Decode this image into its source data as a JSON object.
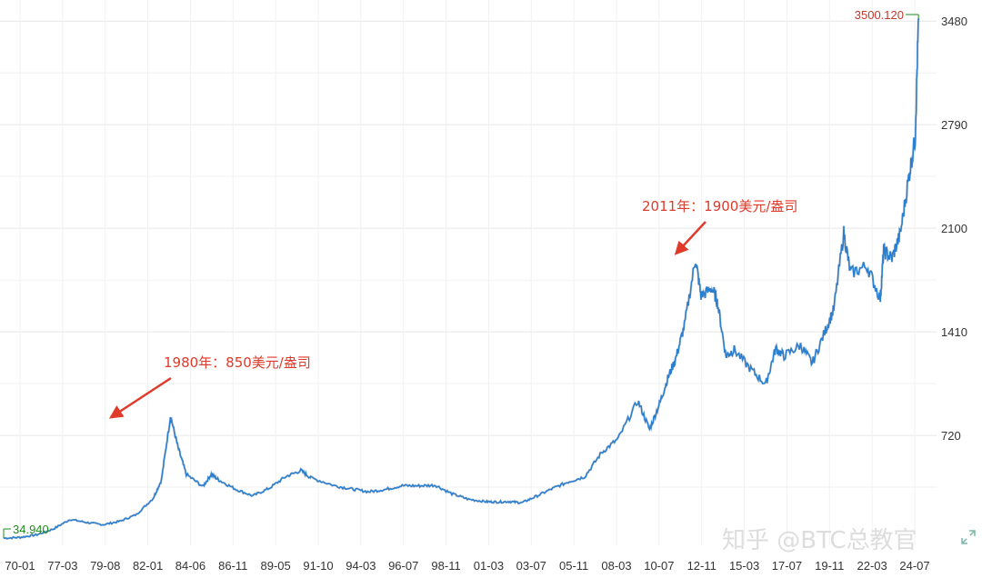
{
  "chart_data": {
    "type": "line",
    "x_ticks": [
      "70-01",
      "77-03",
      "79-08",
      "82-01",
      "84-06",
      "86-11",
      "89-05",
      "91-10",
      "94-03",
      "96-07",
      "98-11",
      "01-03",
      "03-07",
      "05-11",
      "08-03",
      "10-07",
      "12-11",
      "15-03",
      "17-07",
      "19-11",
      "22-03",
      "24-07"
    ],
    "y_ticks": [
      720,
      1410,
      2100,
      2790,
      3480
    ],
    "ylim": [
      0,
      3560
    ],
    "xlim": [
      1970.0,
      2025.2
    ],
    "grid": true,
    "max_label": "3500.120",
    "min_label": "34.940",
    "series": [
      {
        "color": "#2b7fd0",
        "x": [
          1970.0,
          1971.0,
          1972.0,
          1973.0,
          1974.0,
          1975.0,
          1976.0,
          1977.0,
          1978.0,
          1979.0,
          1979.5,
          1980.05,
          1980.5,
          1981.0,
          1982.0,
          1982.5,
          1983.0,
          1984.0,
          1985.0,
          1986.0,
          1987.0,
          1987.9,
          1988.5,
          1990.0,
          1991.0,
          1992.0,
          1993.0,
          1994.0,
          1995.0,
          1996.0,
          1997.0,
          1998.0,
          1999.0,
          1999.7,
          2000.5,
          2001.2,
          2002.0,
          2003.0,
          2004.0,
          2005.0,
          2006.0,
          2007.0,
          2008.2,
          2008.9,
          2009.5,
          2010.0,
          2010.5,
          2011.0,
          2011.67,
          2012.0,
          2012.7,
          2013.0,
          2013.5,
          2014.0,
          2015.0,
          2015.9,
          2016.5,
          2017.0,
          2018.0,
          2018.7,
          2019.5,
          2020.0,
          2020.6,
          2021.0,
          2022.0,
          2022.8,
          2023.0,
          2023.5,
          2024.0,
          2024.5,
          2024.9,
          2025.1
        ],
        "y": [
          35,
          41,
          58,
          97,
          160,
          140,
          125,
          148,
          193,
          300,
          420,
          850,
          640,
          460,
          380,
          460,
          420,
          360,
          317,
          368,
          446,
          486,
          437,
          383,
          362,
          344,
          360,
          385,
          384,
          388,
          331,
          294,
          279,
          276,
          279,
          271,
          310,
          363,
          410,
          445,
          604,
          696,
          950,
          760,
          930,
          1100,
          1240,
          1450,
          1895,
          1650,
          1700,
          1600,
          1250,
          1290,
          1160,
          1060,
          1300,
          1250,
          1320,
          1200,
          1420,
          1560,
          2070,
          1800,
          1850,
          1630,
          1950,
          1900,
          2060,
          2430,
          2700,
          3500
        ]
      }
    ],
    "annotations": [
      {
        "text": "1980年：850美元/盎司",
        "x": 1980.05,
        "y": 850
      },
      {
        "text": "2011年：1900美元/盎司",
        "x": 2011.67,
        "y": 1895
      }
    ]
  },
  "watermark": "知乎 @BTC总教官",
  "colors": {
    "line": "#2b7fd0",
    "grid": "#e6e6e6",
    "annotation": "#e03a2a",
    "max_marker": "#1e8c1e",
    "max_text": "#c0392b",
    "min_text": "#1e8c1e"
  },
  "icons": [
    "expand-icon"
  ]
}
